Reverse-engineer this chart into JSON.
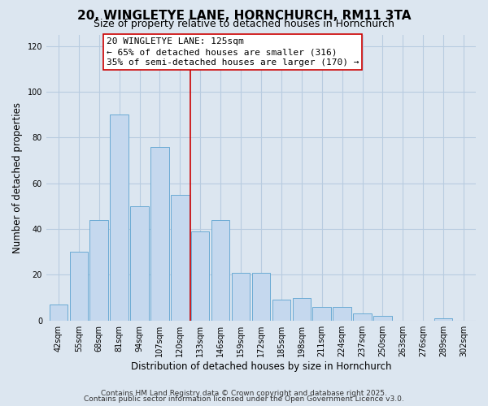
{
  "title": "20, WINGLETYE LANE, HORNCHURCH, RM11 3TA",
  "subtitle": "Size of property relative to detached houses in Hornchurch",
  "xlabel": "Distribution of detached houses by size in Hornchurch",
  "ylabel": "Number of detached properties",
  "bar_labels": [
    "42sqm",
    "55sqm",
    "68sqm",
    "81sqm",
    "94sqm",
    "107sqm",
    "120sqm",
    "133sqm",
    "146sqm",
    "159sqm",
    "172sqm",
    "185sqm",
    "198sqm",
    "211sqm",
    "224sqm",
    "237sqm",
    "250sqm",
    "263sqm",
    "276sqm",
    "289sqm",
    "302sqm"
  ],
  "bar_values": [
    7,
    30,
    44,
    90,
    50,
    76,
    55,
    39,
    44,
    21,
    21,
    9,
    10,
    6,
    6,
    3,
    2,
    0,
    0,
    1,
    0
  ],
  "bar_color": "#c5d8ee",
  "bar_edge_color": "#6aaad4",
  "highlight_color": "#cc0000",
  "highlight_bar_index": 6,
  "annotation_lines": [
    "20 WINGLETYE LANE: 125sqm",
    "← 65% of detached houses are smaller (316)",
    "35% of semi-detached houses are larger (170) →"
  ],
  "ylim": [
    0,
    125
  ],
  "yticks": [
    0,
    20,
    40,
    60,
    80,
    100,
    120
  ],
  "bg_color": "#dce6f0",
  "plot_bg_color": "#dce6f0",
  "grid_color": "#b8cce0",
  "title_fontsize": 11,
  "subtitle_fontsize": 9,
  "axis_label_fontsize": 8.5,
  "tick_fontsize": 7,
  "annotation_fontsize": 8,
  "footer_fontsize": 6.5,
  "footer1": "Contains HM Land Registry data © Crown copyright and database right 2025.",
  "footer2": "Contains public sector information licensed under the Open Government Licence v3.0."
}
